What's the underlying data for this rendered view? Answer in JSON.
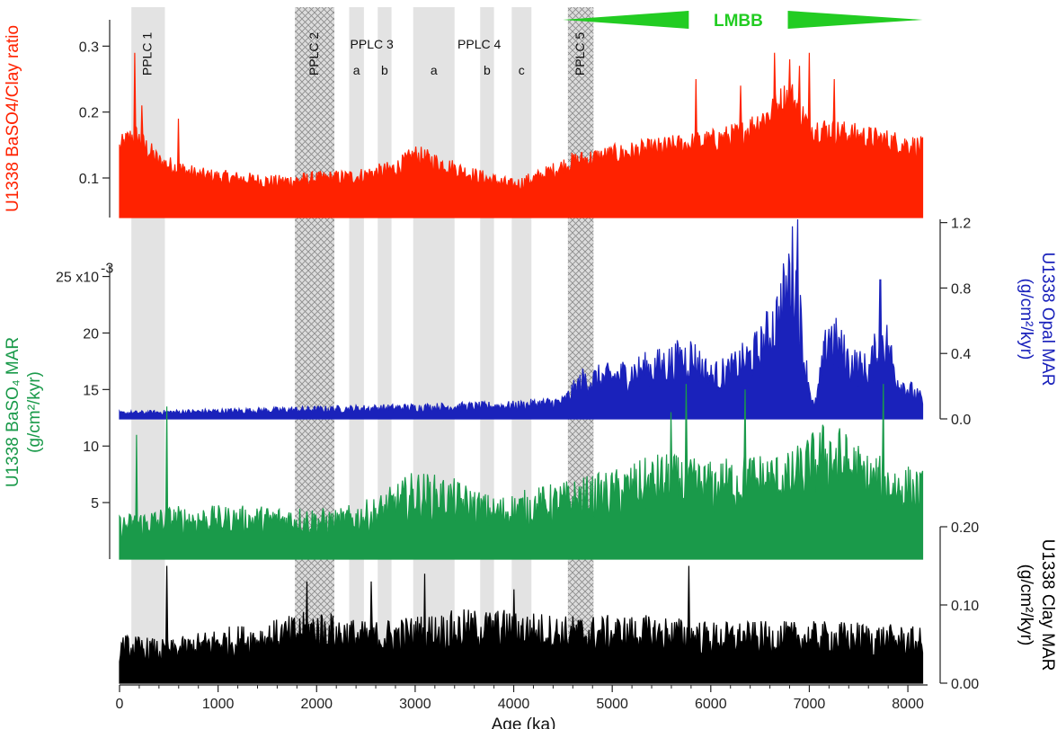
{
  "chart_data": {
    "type": "line",
    "x_axis": {
      "label": "Age (ka)",
      "range": [
        0,
        8200
      ],
      "ticks": [
        0,
        1000,
        2000,
        3000,
        4000,
        5000,
        6000,
        7000,
        8000
      ]
    },
    "shaded_intervals": [
      {
        "label": "PPLC 1",
        "start": 120,
        "end": 460,
        "style": "gray"
      },
      {
        "label": "PPLC 2",
        "start": 1780,
        "end": 2180,
        "style": "hatched"
      },
      {
        "label": "a",
        "start": 2330,
        "end": 2480,
        "style": "gray"
      },
      {
        "label": "b",
        "start": 2620,
        "end": 2760,
        "style": "gray"
      },
      {
        "label": "a",
        "start": 2980,
        "end": 3400,
        "style": "gray"
      },
      {
        "label": "b",
        "start": 3660,
        "end": 3800,
        "style": "gray"
      },
      {
        "label": "c",
        "start": 3980,
        "end": 4180,
        "style": "gray"
      },
      {
        "label": "PPLC 5",
        "start": 4550,
        "end": 4810,
        "style": "hatched"
      }
    ],
    "group_labels": [
      {
        "text": "PPLC 3",
        "x": 2560
      },
      {
        "text": "PPLC 4",
        "x": 3650
      }
    ],
    "annotation": {
      "text": "LMBB",
      "start": 4500,
      "end": 8150,
      "color": "#22cc22"
    },
    "panels": [
      {
        "id": "ratio",
        "ylabel": "U1338 BaSO4/Clay ratio",
        "color": "#ff2200",
        "side": "left",
        "ylim": [
          0.04,
          0.34
        ],
        "ticks": [
          0.1,
          0.2,
          0.3
        ],
        "tick_labels": [
          "0.1",
          "0.2",
          "0.3"
        ],
        "profile": [
          [
            0,
            0.14
          ],
          [
            150,
            0.16
          ],
          [
            400,
            0.12
          ],
          [
            800,
            0.1
          ],
          [
            1200,
            0.095
          ],
          [
            1600,
            0.09
          ],
          [
            2000,
            0.095
          ],
          [
            2400,
            0.098
          ],
          [
            2800,
            0.11
          ],
          [
            3000,
            0.13
          ],
          [
            3200,
            0.12
          ],
          [
            3600,
            0.1
          ],
          [
            4000,
            0.085
          ],
          [
            4300,
            0.1
          ],
          [
            4600,
            0.12
          ],
          [
            5000,
            0.13
          ],
          [
            5500,
            0.14
          ],
          [
            6000,
            0.15
          ],
          [
            6300,
            0.16
          ],
          [
            6600,
            0.19
          ],
          [
            6800,
            0.22
          ],
          [
            7000,
            0.17
          ],
          [
            7400,
            0.16
          ],
          [
            7800,
            0.15
          ],
          [
            8150,
            0.14
          ]
        ],
        "peaks": [
          [
            150,
            0.29
          ],
          [
            230,
            0.21
          ],
          [
            600,
            0.19
          ],
          [
            6650,
            0.29
          ],
          [
            6800,
            0.28
          ],
          [
            6900,
            0.27
          ],
          [
            7000,
            0.29
          ],
          [
            7250,
            0.25
          ],
          [
            5850,
            0.25
          ],
          [
            6300,
            0.24
          ]
        ]
      },
      {
        "id": "opal",
        "ylabel": "U1338 Opal MAR",
        "yunit": "(g/cm²/kyr)",
        "color": "#1a22bb",
        "side": "right",
        "ylim": [
          0,
          1.22
        ],
        "ticks": [
          0.0,
          0.4,
          0.8,
          1.2
        ],
        "tick_labels": [
          "0.0",
          "0.4",
          "0.8",
          "1.2"
        ],
        "profile": [
          [
            0,
            0.03
          ],
          [
            1000,
            0.04
          ],
          [
            2000,
            0.05
          ],
          [
            3000,
            0.06
          ],
          [
            4000,
            0.07
          ],
          [
            4500,
            0.09
          ],
          [
            4700,
            0.2
          ],
          [
            5000,
            0.22
          ],
          [
            5500,
            0.28
          ],
          [
            5800,
            0.33
          ],
          [
            6000,
            0.22
          ],
          [
            6200,
            0.25
          ],
          [
            6500,
            0.36
          ],
          [
            6700,
            0.55
          ],
          [
            6850,
            0.8
          ],
          [
            6950,
            0.3
          ],
          [
            7050,
            0.05
          ],
          [
            7200,
            0.45
          ],
          [
            7400,
            0.3
          ],
          [
            7600,
            0.25
          ],
          [
            7750,
            0.45
          ],
          [
            7900,
            0.2
          ],
          [
            8150,
            0.1
          ]
        ],
        "peaks": [
          [
            6880,
            1.22
          ],
          [
            6800,
            0.95
          ],
          [
            7720,
            0.85
          ],
          [
            7200,
            0.55
          ],
          [
            5700,
            0.38
          ]
        ]
      },
      {
        "id": "baso4",
        "ylabel": "U1338 BaSO₄ MAR",
        "yunit": "(g/cm²/kyr)",
        "color": "#1a9a4a",
        "side": "left",
        "ylim": [
          0.0,
          0.026
        ],
        "ticks": [
          0.005,
          0.01,
          0.015,
          0.02,
          0.025
        ],
        "tick_labels": [
          "5",
          "10",
          "15",
          "20",
          "25 x10"
        ],
        "multiplier": "-3",
        "profile": [
          [
            0,
            0.0025
          ],
          [
            500,
            0.003
          ],
          [
            1000,
            0.003
          ],
          [
            1800,
            0.003
          ],
          [
            2200,
            0.0028
          ],
          [
            2600,
            0.0035
          ],
          [
            3000,
            0.005
          ],
          [
            3400,
            0.0045
          ],
          [
            3800,
            0.0035
          ],
          [
            4200,
            0.004
          ],
          [
            4600,
            0.0045
          ],
          [
            5000,
            0.005
          ],
          [
            5500,
            0.006
          ],
          [
            6000,
            0.0055
          ],
          [
            6400,
            0.006
          ],
          [
            6800,
            0.006
          ],
          [
            7200,
            0.008
          ],
          [
            7600,
            0.006
          ],
          [
            8150,
            0.005
          ]
        ],
        "peaks": [
          [
            170,
            0.011
          ],
          [
            480,
            0.0135
          ],
          [
            5750,
            0.0155
          ],
          [
            6350,
            0.015
          ],
          [
            7750,
            0.0155
          ],
          [
            5600,
            0.013
          ]
        ]
      },
      {
        "id": "clay",
        "ylabel": "U1338 Clay MAR",
        "yunit": "(g/cm²/kyr)",
        "color": "#000000",
        "side": "right",
        "ylim": [
          0.0,
          0.2
        ],
        "ticks": [
          0.0,
          0.1,
          0.2
        ],
        "tick_labels": [
          "0.00",
          "0.10",
          "0.20"
        ],
        "profile": [
          [
            0,
            0.04
          ],
          [
            500,
            0.035
          ],
          [
            1000,
            0.045
          ],
          [
            1500,
            0.05
          ],
          [
            2000,
            0.06
          ],
          [
            2500,
            0.05
          ],
          [
            3000,
            0.055
          ],
          [
            3500,
            0.06
          ],
          [
            4000,
            0.06
          ],
          [
            4500,
            0.055
          ],
          [
            5000,
            0.055
          ],
          [
            5500,
            0.055
          ],
          [
            6000,
            0.05
          ],
          [
            6500,
            0.05
          ],
          [
            7000,
            0.05
          ],
          [
            7500,
            0.05
          ],
          [
            8150,
            0.045
          ]
        ],
        "peaks": [
          [
            480,
            0.15
          ],
          [
            5780,
            0.15
          ],
          [
            3100,
            0.14
          ],
          [
            2550,
            0.13
          ],
          [
            1900,
            0.13
          ],
          [
            4000,
            0.12
          ]
        ]
      }
    ]
  }
}
